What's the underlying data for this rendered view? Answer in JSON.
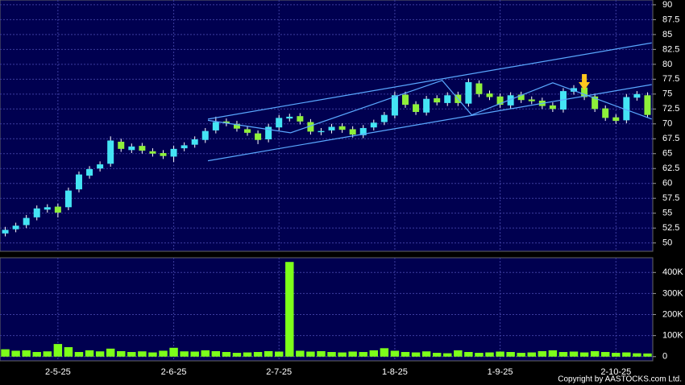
{
  "chart_data": [
    {
      "type": "candlestick",
      "open": [
        51.6,
        52.3,
        53.0,
        54.3,
        55.6,
        56.1,
        56.0,
        59.0,
        61.3,
        62.5,
        63.3,
        67.0,
        65.6,
        66.3,
        65.4,
        65.1,
        64.5,
        65.9,
        66.5,
        67.3,
        68.9,
        70.4,
        70.0,
        69.1,
        68.4,
        67.4,
        69.4,
        70.9,
        71.3,
        70.3,
        68.6,
        68.9,
        69.6,
        69.1,
        68.1,
        69.4,
        70.3,
        71.4,
        74.9,
        73.3,
        71.9,
        74.3,
        73.5,
        74.9,
        73.4,
        76.8,
        75.1,
        74.6,
        73.1,
        74.9,
        74.1,
        73.9,
        73.1,
        72.4,
        75.4,
        76.1,
        74.6,
        72.6,
        71.1,
        70.6,
        74.4,
        74.8
      ],
      "high": [
        52.7,
        53.4,
        54.7,
        56.3,
        56.5,
        56.6,
        59.3,
        62.0,
        62.9,
        63.7,
        67.9,
        67.5,
        66.7,
        66.8,
        65.9,
        65.6,
        66.3,
        66.9,
        67.9,
        69.3,
        71.2,
        70.9,
        70.5,
        69.6,
        68.9,
        70.0,
        71.5,
        71.7,
        71.8,
        70.8,
        69.3,
        70.0,
        70.1,
        69.6,
        69.8,
        70.7,
        72.0,
        75.4,
        75.4,
        73.8,
        74.7,
        74.8,
        75.3,
        75.4,
        77.6,
        77.3,
        75.6,
        75.1,
        75.3,
        75.4,
        74.6,
        74.4,
        73.6,
        76.0,
        76.5,
        76.6,
        75.1,
        73.1,
        71.6,
        75.0,
        75.5,
        75.3
      ],
      "low": [
        51.1,
        51.8,
        52.5,
        53.8,
        55.1,
        54.3,
        55.5,
        58.5,
        60.8,
        62.0,
        62.8,
        65.3,
        65.1,
        65.0,
        64.5,
        64.1,
        63.6,
        65.4,
        66.0,
        66.8,
        68.4,
        69.6,
        68.7,
        68.0,
        66.6,
        66.9,
        68.9,
        70.4,
        69.9,
        68.2,
        68.1,
        68.4,
        68.5,
        67.7,
        67.6,
        68.9,
        69.8,
        70.9,
        72.7,
        71.5,
        71.4,
        73.1,
        73.0,
        73.0,
        72.9,
        74.5,
        74.0,
        72.7,
        72.6,
        73.5,
        73.3,
        72.5,
        72.0,
        71.9,
        74.9,
        74.0,
        72.0,
        70.5,
        70.0,
        70.1,
        73.9,
        71.0
      ],
      "close": [
        52.2,
        52.9,
        54.2,
        55.8,
        56.0,
        55.1,
        58.8,
        61.5,
        62.4,
        63.2,
        67.2,
        65.8,
        66.2,
        65.5,
        65.0,
        64.6,
        65.8,
        66.4,
        67.4,
        68.8,
        70.3,
        70.1,
        69.2,
        68.5,
        67.3,
        69.5,
        71.0,
        71.2,
        70.4,
        68.7,
        68.8,
        69.5,
        69.0,
        68.2,
        69.3,
        70.2,
        71.5,
        74.8,
        73.2,
        72.0,
        74.2,
        73.6,
        74.8,
        73.5,
        77.0,
        75.0,
        74.5,
        73.2,
        74.8,
        74.0,
        73.8,
        73.0,
        72.5,
        75.5,
        76.0,
        74.5,
        72.5,
        71.0,
        70.5,
        74.5,
        75.0,
        71.5
      ],
      "up_color": "#44e4f4",
      "down_color": "#8ef03a",
      "ylim": [
        48.6,
        90.8
      ],
      "yticks": [
        50,
        52.5,
        55,
        57.5,
        60,
        62.5,
        65,
        67.5,
        70,
        72.5,
        75,
        77.5,
        80,
        82.5,
        85,
        87.5,
        90
      ],
      "grid": true,
      "trendline_color": "#5aa8ff",
      "trendlines": [
        {
          "x": [
            19.25,
            61.4
          ],
          "y": [
            70.8,
            83.6
          ]
        },
        {
          "x": [
            19.25,
            61.4
          ],
          "y": [
            63.8,
            76.6
          ]
        },
        {
          "x": [
            19.25,
            27.1,
            41.5,
            44.3,
            52.0,
            61.4
          ],
          "y": [
            70.6,
            68.5,
            77.3,
            71.5,
            76.9,
            70.8
          ]
        }
      ]
    },
    {
      "type": "bar",
      "categories": [
        null,
        null,
        null,
        null,
        null,
        "2-5-25",
        null,
        null,
        null,
        null,
        null,
        null,
        null,
        null,
        null,
        null,
        "2-6-25",
        null,
        null,
        null,
        null,
        null,
        null,
        null,
        null,
        null,
        "2-7-25",
        null,
        null,
        null,
        null,
        null,
        null,
        null,
        null,
        null,
        null,
        "1-8-25",
        null,
        null,
        null,
        null,
        null,
        null,
        null,
        null,
        null,
        "1-9-25",
        null,
        null,
        null,
        null,
        null,
        null,
        null,
        null,
        null,
        null,
        "2-10-25",
        null,
        null,
        null
      ],
      "values": [
        35000,
        28000,
        30000,
        22000,
        25000,
        60000,
        45000,
        22000,
        30000,
        25000,
        38000,
        26000,
        22000,
        25000,
        20000,
        28000,
        42000,
        25000,
        24000,
        30000,
        26000,
        22000,
        18000,
        20000,
        22000,
        26000,
        24000,
        450000,
        28000,
        24000,
        26000,
        22000,
        20000,
        24000,
        22000,
        30000,
        40000,
        28000,
        22000,
        20000,
        25000,
        18000,
        16000,
        30000,
        22000,
        18000,
        20000,
        24000,
        22000,
        18000,
        20000,
        26000,
        30000,
        22000,
        24000,
        20000,
        26000,
        22000,
        18000,
        20000,
        16000,
        15000
      ],
      "color": "#7dff1a",
      "ylim": [
        -20000,
        470000
      ],
      "yticks": [
        {
          "value": 0,
          "label": "0"
        },
        {
          "value": 100000,
          "label": "100K"
        },
        {
          "value": 200000,
          "label": "200K"
        },
        {
          "value": 300000,
          "label": "300K"
        },
        {
          "value": 400000,
          "label": "400K"
        }
      ],
      "grid": true
    }
  ],
  "footer": "Copyright by AASTOCKS.com Ltd."
}
